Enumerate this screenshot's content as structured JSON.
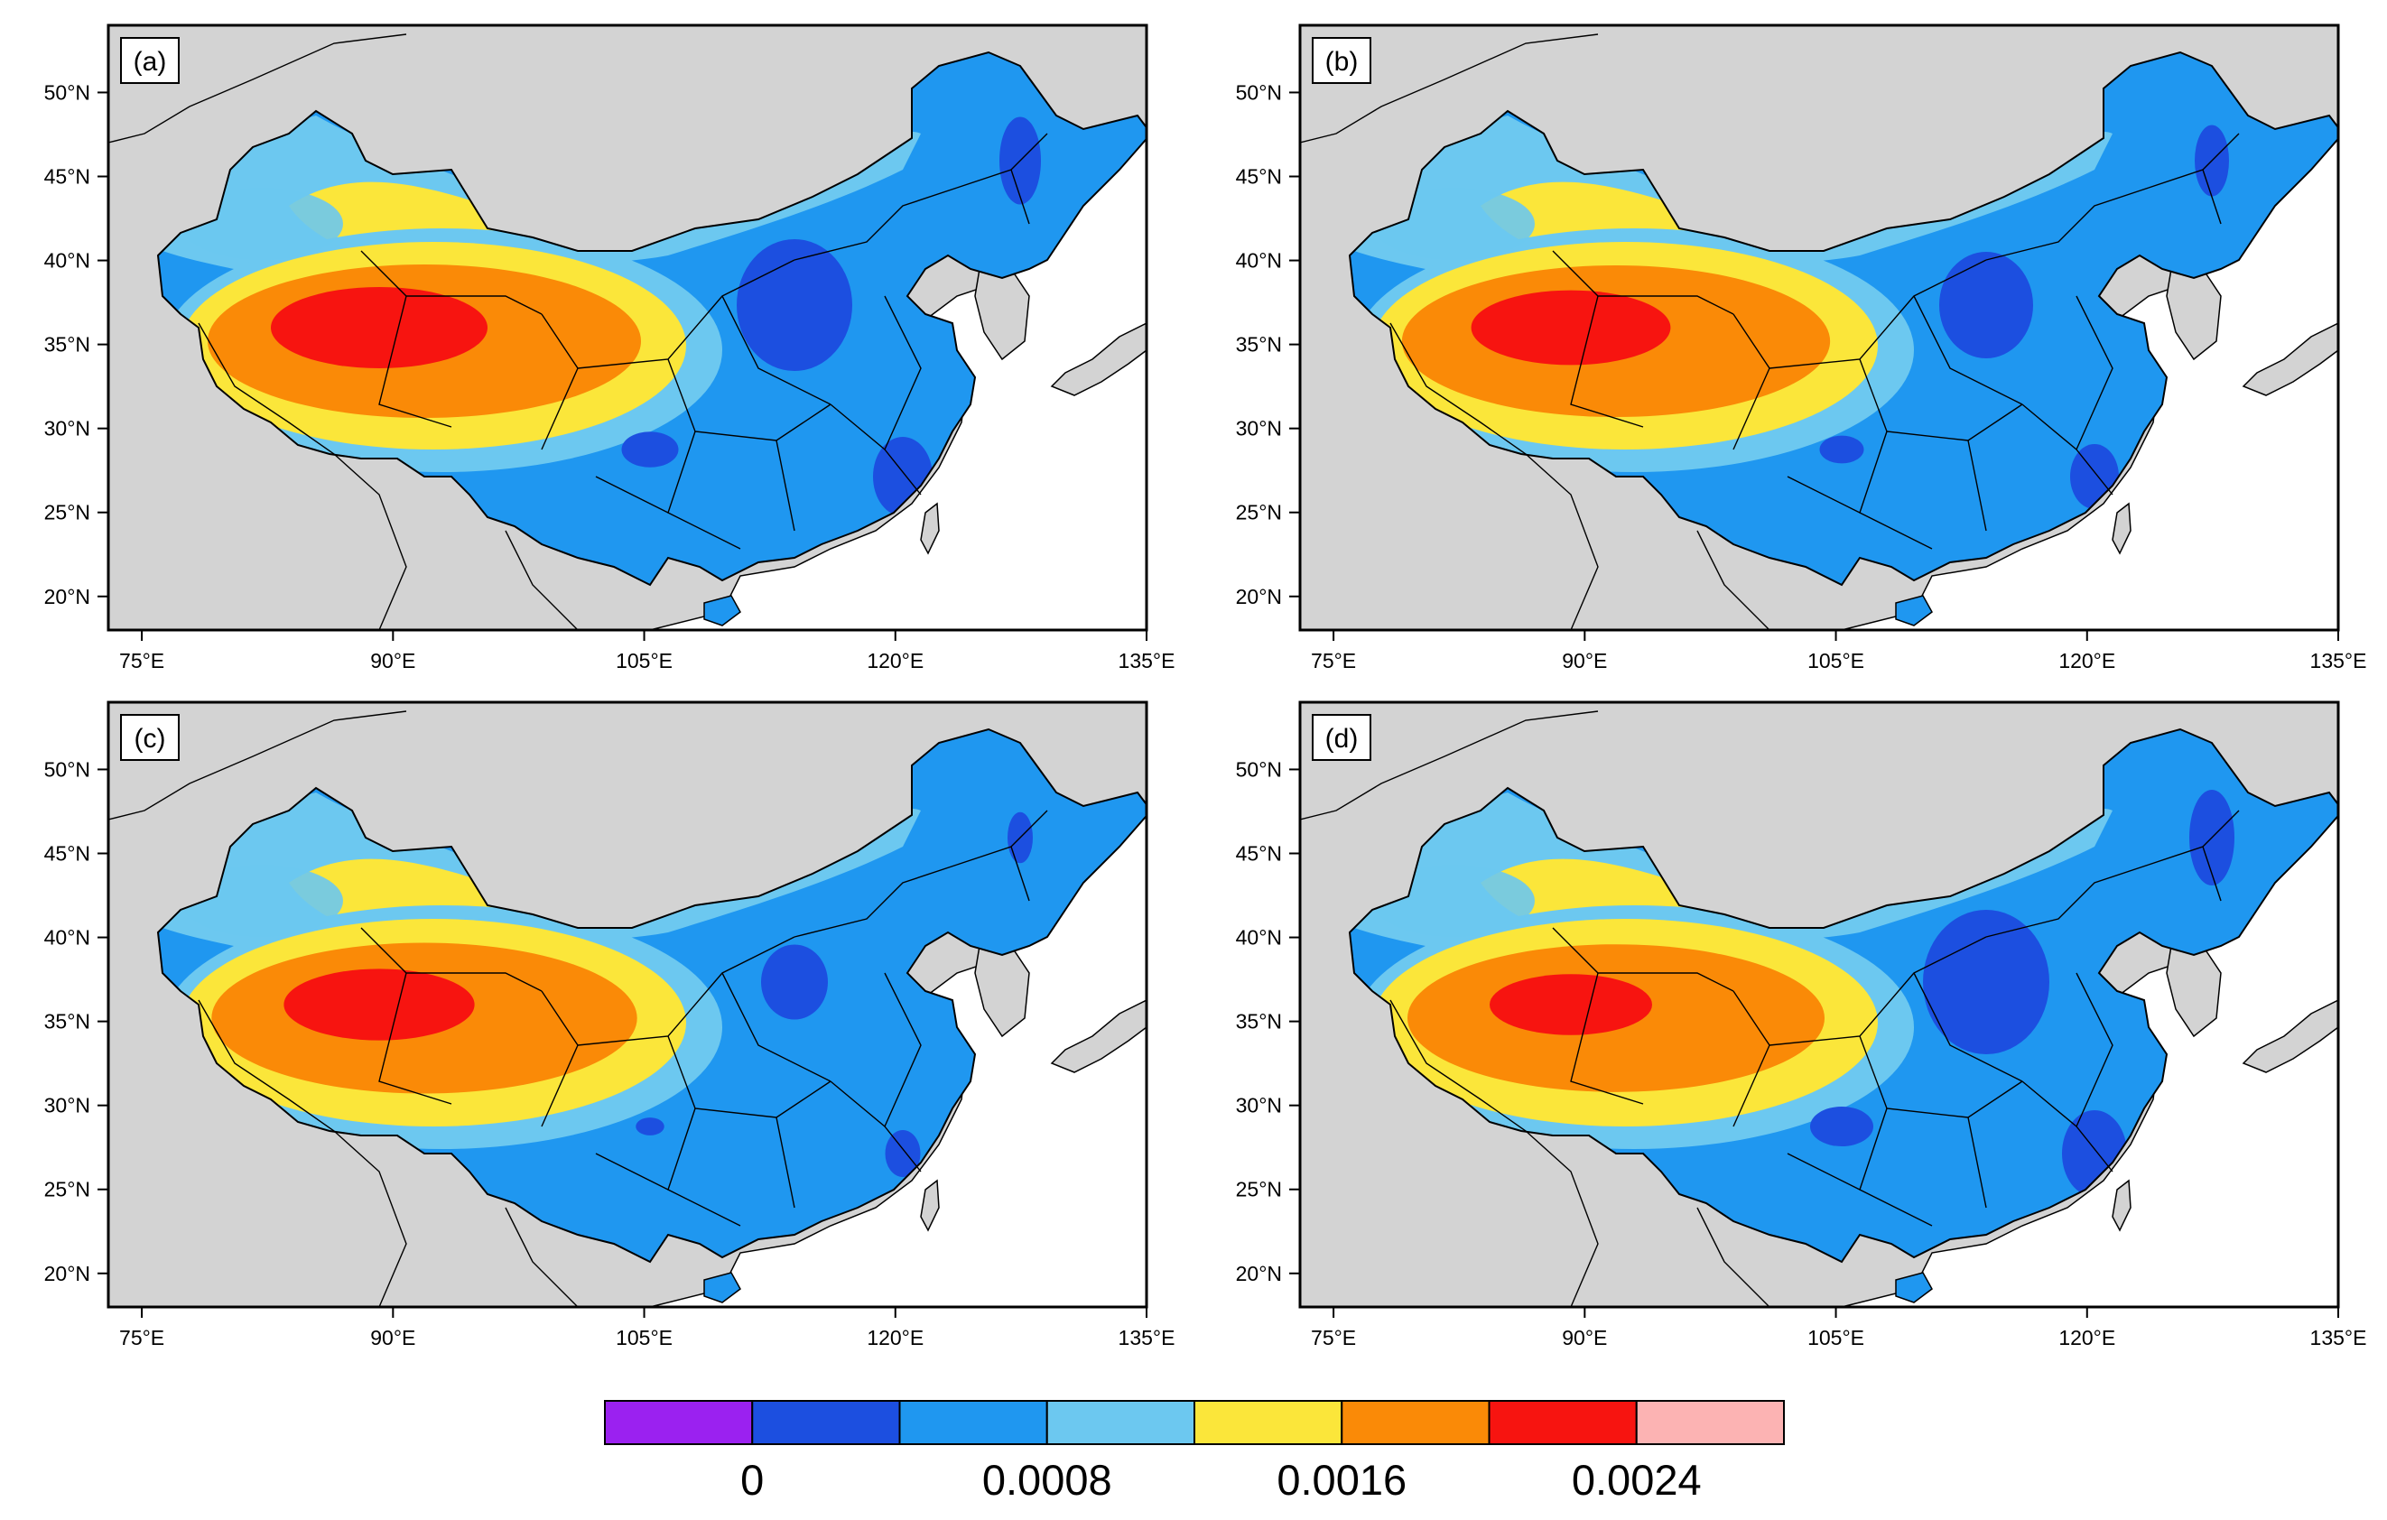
{
  "figure": {
    "lon_range": [
      73,
      135
    ],
    "lat_range": [
      18,
      54
    ],
    "lon_ticks": [
      "75°E",
      "90°E",
      "105°E",
      "120°E",
      "135°E"
    ],
    "lon_tick_values": [
      75,
      90,
      105,
      120,
      135
    ],
    "lat_ticks": [
      "20°N",
      "25°N",
      "30°N",
      "35°N",
      "40°N",
      "45°N",
      "50°N"
    ],
    "lat_tick_values": [
      20,
      25,
      30,
      35,
      40,
      45,
      50
    ],
    "panels": [
      {
        "label": "(a)",
        "id": "a",
        "peak": 1.0,
        "east_dark": 0.9
      },
      {
        "label": "(b)",
        "id": "b",
        "peak": 0.92,
        "east_dark": 0.7
      },
      {
        "label": "(c)",
        "id": "c",
        "peak": 0.88,
        "east_dark": 0.45
      },
      {
        "label": "(d)",
        "id": "d",
        "peak": 0.75,
        "east_dark": 1.0
      }
    ],
    "colors": {
      "land": "#d3d3d3",
      "ocean": "#ffffff",
      "purple": "#9b21f0",
      "dark_blue": "#1c4fe0",
      "blue": "#1f97f0",
      "light_blue": "#6cc8f0",
      "yellow": "#fbe63a",
      "orange": "#fa8a07",
      "red": "#f71410",
      "pink": "#fcb3b3"
    }
  },
  "colorbar": {
    "colors": [
      "#9b21f0",
      "#1c4fe0",
      "#1f97f0",
      "#6cc8f0",
      "#fbe63a",
      "#fa8a07",
      "#f71410",
      "#fcb3b3"
    ],
    "labels": [
      "0",
      "0.0008",
      "0.0016",
      "0.0024"
    ],
    "label_edges": [
      1,
      3,
      5,
      7
    ]
  }
}
